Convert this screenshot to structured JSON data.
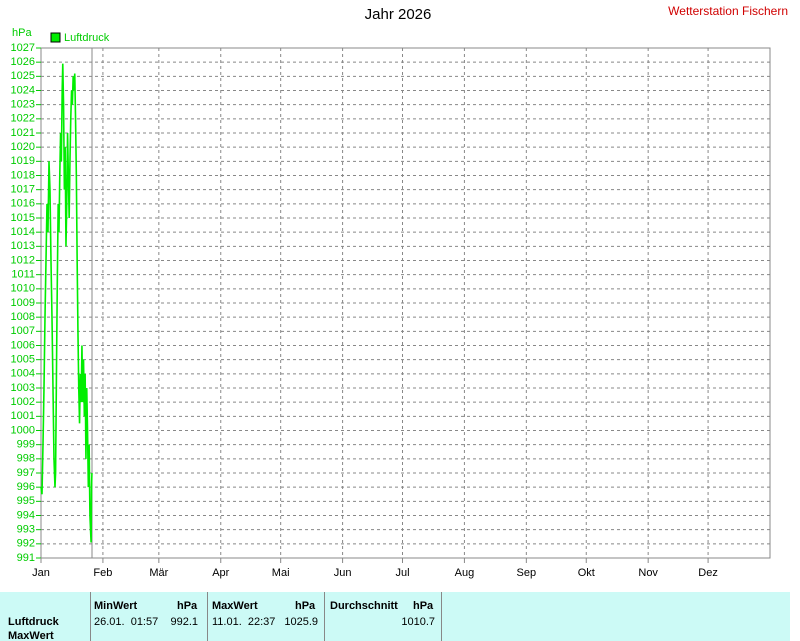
{
  "chart_data": {
    "type": "line",
    "title": "Jahr 2026",
    "station": "Wetterstation Fischern",
    "y_label": "hPa",
    "x": [
      0.0,
      0.5,
      1.0,
      1.5,
      2.0,
      2.5,
      3.0,
      3.5,
      4.0,
      4.5,
      5.0,
      5.5,
      6.0,
      6.5,
      7.0,
      7.3,
      7.8,
      8.2,
      8.6,
      9.0,
      9.4,
      9.8,
      10.2,
      10.6,
      10.9,
      11.3,
      11.7,
      12.1,
      12.5,
      12.9,
      13.3,
      13.7,
      14.1,
      14.5,
      14.9,
      15.3,
      15.7,
      16.1,
      16.5,
      16.9,
      17.3,
      17.7,
      18.1,
      18.5,
      18.9,
      19.3,
      19.7,
      20.1,
      20.5,
      20.9,
      21.3,
      21.7,
      22.1,
      22.5,
      22.9,
      23.3,
      23.7,
      24.1,
      24.5,
      24.8,
      25.08,
      25.3,
      25.5
    ],
    "series": [
      {
        "name": "Luftdruck",
        "color": "#00ee00",
        "values": [
          996,
          995.5,
          999,
          1003,
          1008,
          1012,
          1016,
          1014,
          1019,
          1017,
          1012,
          1008,
          1003,
          998,
          996,
          997,
          1005,
          1011,
          1016,
          1014,
          1018,
          1021,
          1019,
          1024,
          1025.9,
          1023,
          1017,
          1020,
          1013,
          1016,
          1021,
          1018,
          1015,
          1019,
          1022,
          1024,
          1023,
          1025,
          1024,
          1025.2,
          1022,
          1018,
          1012,
          1007,
          1003,
          1000.5,
          1004,
          1002,
          1006,
          1002,
          1005,
          1001,
          1004,
          998,
          1003,
          1000,
          996,
          999,
          994,
          993,
          992.1,
          996,
          997
        ]
      }
    ],
    "xlim": [
      0,
      365
    ],
    "xticks": [
      {
        "value": 0,
        "label": "Jan"
      },
      {
        "value": 31,
        "label": "Feb"
      },
      {
        "value": 59,
        "label": "Mär"
      },
      {
        "value": 90,
        "label": "Apr"
      },
      {
        "value": 120,
        "label": "Mai"
      },
      {
        "value": 151,
        "label": "Jun"
      },
      {
        "value": 181,
        "label": "Jul"
      },
      {
        "value": 212,
        "label": "Aug"
      },
      {
        "value": 243,
        "label": "Sep"
      },
      {
        "value": 273,
        "label": "Okt"
      },
      {
        "value": 304,
        "label": "Nov"
      },
      {
        "value": 334,
        "label": "Dez"
      }
    ],
    "ylim": [
      991,
      1027
    ],
    "yticks": [
      991,
      992,
      993,
      994,
      995,
      996,
      997,
      998,
      999,
      1000,
      1001,
      1002,
      1003,
      1004,
      1005,
      1006,
      1007,
      1008,
      1009,
      1010,
      1011,
      1012,
      1013,
      1014,
      1015,
      1016,
      1017,
      1018,
      1019,
      1020,
      1021,
      1022,
      1023,
      1024,
      1025,
      1026,
      1027
    ],
    "grid": true
  },
  "stats_table": {
    "row_labels": [
      "Luftdruck",
      "MaxWert"
    ],
    "columns": [
      {
        "header": "MinWert",
        "unit": "hPa",
        "time": "26.01.  01:57",
        "value": 992.1
      },
      {
        "header": "MaxWert",
        "unit": "hPa",
        "time": "11.01.  22:37",
        "value": 1025.9
      },
      {
        "header": "Durchschnitt",
        "unit": "hPa",
        "value": 1010.7
      }
    ]
  }
}
